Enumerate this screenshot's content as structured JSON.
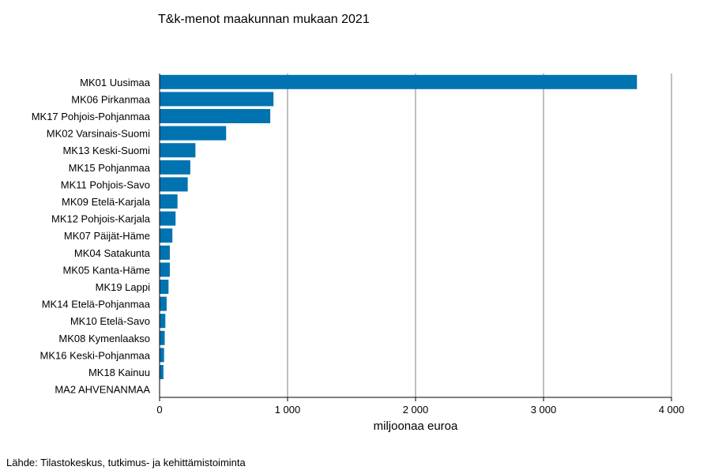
{
  "title": "T&k-menot maakunnan mukaan 2021",
  "source": "Lähde: Tilastokeskus, tutkimus- ja kehittämistoiminta",
  "colors": {
    "bar": "#0073b0",
    "grid": "#7f7f7f",
    "axis": "#000000"
  },
  "chart_data": {
    "type": "bar",
    "orientation": "horizontal",
    "title": "T&k-menot maakunnan mukaan 2021",
    "xlabel": "miljoonaa euroa",
    "ylabel": "",
    "xlim": [
      0,
      4000
    ],
    "xticks": [
      0,
      1000,
      2000,
      3000,
      4000
    ],
    "xtick_labels": [
      "0",
      "1 000",
      "2 000",
      "3 000",
      "4 000"
    ],
    "grid": true,
    "categories": [
      "MK01 Uusimaa",
      "MK06 Pirkanmaa",
      "MK17 Pohjois-Pohjanmaa",
      "MK02 Varsinais-Suomi",
      "MK13 Keski-Suomi",
      "MK15 Pohjanmaa",
      "MK11 Pohjois-Savo",
      "MK09 Etelä-Karjala",
      "MK12 Pohjois-Karjala",
      "MK07 Päijät-Häme",
      "MK04 Satakunta",
      "MK05 Kanta-Häme",
      "MK19 Lappi",
      "MK14 Etelä-Pohjanmaa",
      "MK10 Etelä-Savo",
      "MK08 Kymenlaakso",
      "MK16 Keski-Pohjanmaa",
      "MK18 Kainuu",
      "MA2 AHVENANMAA"
    ],
    "values": [
      3730,
      890,
      865,
      520,
      280,
      240,
      220,
      140,
      125,
      100,
      80,
      80,
      70,
      55,
      45,
      40,
      35,
      30,
      2
    ]
  }
}
